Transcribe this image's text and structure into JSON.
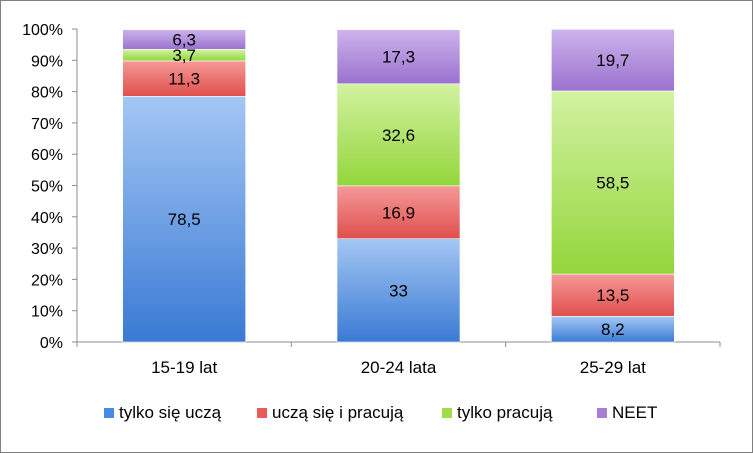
{
  "chart_data": {
    "type": "bar",
    "stacked": true,
    "percent_stacked": true,
    "categories": [
      "15-19 lat",
      "20-24 lata",
      "25-29 lat"
    ],
    "series": [
      {
        "name": "tylko się uczą",
        "values": [
          78.5,
          33,
          8.2
        ],
        "color": "#4a8be2"
      },
      {
        "name": "uczą się i pracują",
        "values": [
          11.3,
          16.9,
          13.5
        ],
        "color": "#e85b58"
      },
      {
        "name": "tylko pracują",
        "values": [
          3.7,
          32.6,
          58.5
        ],
        "color": "#9fdc47"
      },
      {
        "name": "NEET",
        "values": [
          6.3,
          17.3,
          19.7
        ],
        "color": "#a67ed6"
      }
    ],
    "data_labels": [
      [
        "78,5",
        "11,3",
        "3,7",
        "6,3"
      ],
      [
        "33",
        "16,9",
        "32,6",
        "17,3"
      ],
      [
        "8,2",
        "13,5",
        "58,5",
        "19,7"
      ]
    ],
    "yticks": [
      "0%",
      "10%",
      "20%",
      "30%",
      "40%",
      "50%",
      "60%",
      "70%",
      "80%",
      "90%",
      "100%"
    ],
    "ylim": [
      0,
      100
    ],
    "grid": false,
    "legend_position": "bottom"
  }
}
